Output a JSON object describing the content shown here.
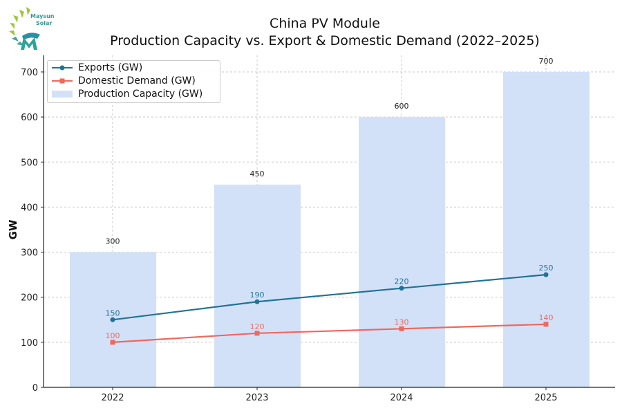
{
  "logo": {
    "text_line1": "Maysun",
    "text_line2": "Solar"
  },
  "chart_data": {
    "type": "bar+line",
    "title_line1": "China PV Module",
    "title_line2": "Production Capacity vs. Export & Domestic Demand (2022–2025)",
    "xlabel": "",
    "ylabel": "GW",
    "ylim": [
      0,
      700
    ],
    "yticks": [
      0,
      100,
      200,
      300,
      400,
      500,
      600,
      700
    ],
    "categories": [
      "2022",
      "2023",
      "2024",
      "2025"
    ],
    "grid": true,
    "legend_position": "top-left",
    "series": [
      {
        "name": "Exports (GW)",
        "type": "line",
        "marker": "circle",
        "color": "#1f7396",
        "values": [
          150,
          190,
          220,
          250
        ]
      },
      {
        "name": "Domestic Demand (GW)",
        "type": "line",
        "marker": "square",
        "color": "#f0675c",
        "values": [
          100,
          120,
          130,
          140
        ]
      },
      {
        "name": "Production Capacity (GW)",
        "type": "bar",
        "color": "#d3e1f8",
        "values": [
          300,
          450,
          600,
          700
        ]
      }
    ]
  }
}
